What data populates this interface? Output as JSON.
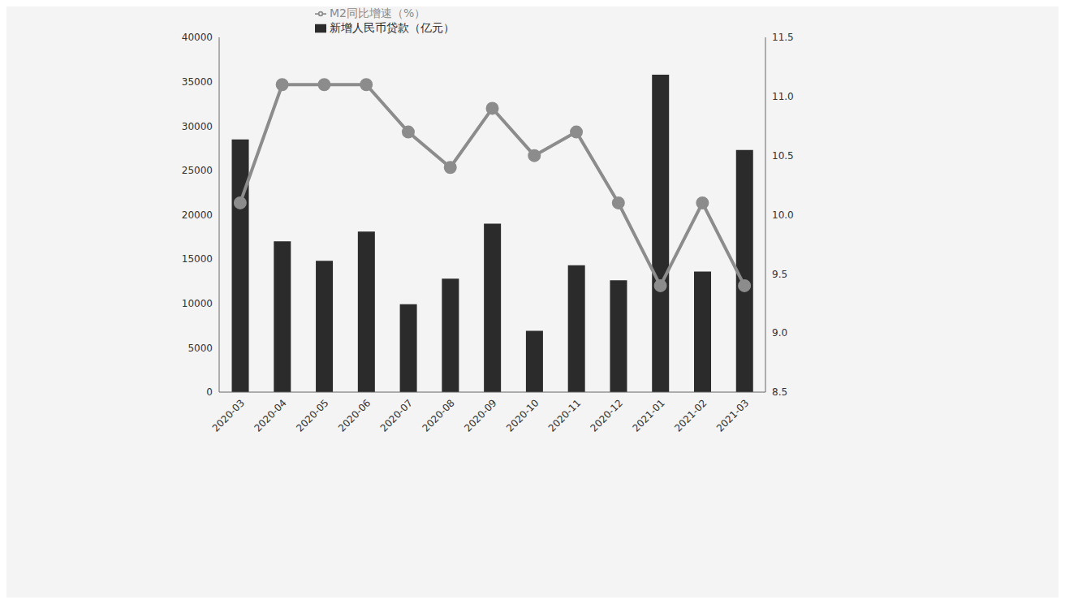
{
  "chart_data": {
    "type": "bar",
    "categories": [
      "2020-03",
      "2020-04",
      "2020-05",
      "2020-06",
      "2020-07",
      "2020-08",
      "2020-09",
      "2020-10",
      "2020-11",
      "2020-12",
      "2021-01",
      "2021-02",
      "2021-03"
    ],
    "series": [
      {
        "name": "新增人民币贷款（亿元）",
        "type": "bar",
        "color": "#2b2b2b",
        "values": [
          28500,
          17000,
          14800,
          18100,
          9900,
          12800,
          19000,
          6900,
          14300,
          12600,
          35800,
          13600,
          27300
        ]
      },
      {
        "name": "M2同比增速（%）",
        "type": "line",
        "color": "#8c8c8c",
        "axis": "y2",
        "marker": "circle",
        "values": [
          10.1,
          11.1,
          11.1,
          11.1,
          10.7,
          10.4,
          10.9,
          10.5,
          10.7,
          10.1,
          9.4,
          10.1,
          9.4
        ]
      }
    ],
    "ylim": [
      0,
      40000
    ],
    "yticks": [
      0,
      5000,
      10000,
      15000,
      20000,
      25000,
      30000,
      35000,
      40000
    ],
    "y2lim": [
      8.5,
      11.5
    ],
    "y2ticks": [
      8.5,
      {
        "value": 9,
        "label": "9.0"
      },
      9.5,
      {
        "value": 10,
        "label": "10.0"
      },
      10.5,
      {
        "value": 11,
        "label": "11.0"
      },
      11.5
    ],
    "legend": "top"
  }
}
